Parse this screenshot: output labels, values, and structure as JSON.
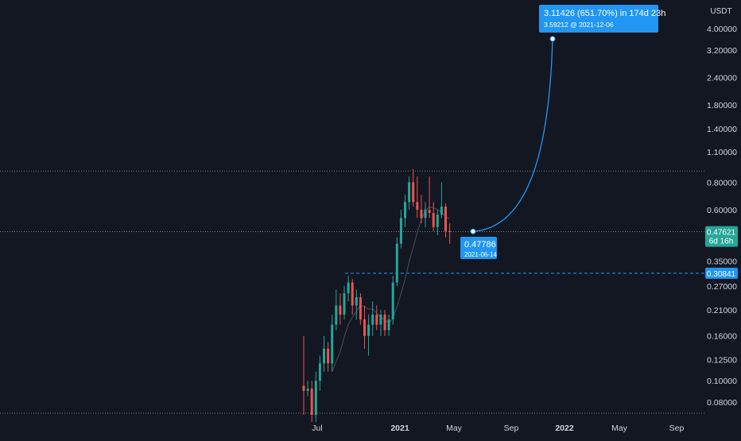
{
  "chart_data": {
    "type": "candlestick",
    "title": "",
    "unit_label": "USDT",
    "scale": "log",
    "y_axis_ticks": [
      "4.00000",
      "3.20000",
      "2.40000",
      "1.80000",
      "1.40000",
      "1.10000",
      "0.80000",
      "0.60000",
      "0.35000",
      "0.27000",
      "0.21000",
      "0.16000",
      "0.12500",
      "0.10000",
      "0.08000"
    ],
    "x_axis_ticks": [
      {
        "label": "Jul",
        "bold": false
      },
      {
        "label": "2021",
        "bold": true
      },
      {
        "label": "May",
        "bold": false
      },
      {
        "label": "Sep",
        "bold": false
      },
      {
        "label": "2022",
        "bold": true
      },
      {
        "label": "May",
        "bold": false
      },
      {
        "label": "Sep",
        "bold": false
      }
    ],
    "last_price": {
      "value": "0.47621",
      "countdown": "6d 16h",
      "color": "#26a69a"
    },
    "support_level": {
      "value": "0.30841",
      "color": "#2196f3"
    },
    "horizontal_levels": [
      0.9,
      0.477
    ],
    "candles": [
      [
        0.095,
        0.16,
        0.07,
        0.09
      ],
      [
        0.09,
        0.1,
        0.085,
        0.092
      ],
      [
        0.092,
        0.1,
        0.065,
        0.07
      ],
      [
        0.07,
        0.11,
        0.065,
        0.1
      ],
      [
        0.1,
        0.13,
        0.09,
        0.12
      ],
      [
        0.12,
        0.16,
        0.11,
        0.14
      ],
      [
        0.14,
        0.15,
        0.11,
        0.12
      ],
      [
        0.12,
        0.2,
        0.11,
        0.18
      ],
      [
        0.18,
        0.26,
        0.17,
        0.22
      ],
      [
        0.22,
        0.25,
        0.18,
        0.2
      ],
      [
        0.2,
        0.27,
        0.19,
        0.25
      ],
      [
        0.25,
        0.3,
        0.23,
        0.28
      ],
      [
        0.28,
        0.29,
        0.2,
        0.22
      ],
      [
        0.22,
        0.26,
        0.19,
        0.24
      ],
      [
        0.24,
        0.25,
        0.18,
        0.19
      ],
      [
        0.19,
        0.22,
        0.14,
        0.16
      ],
      [
        0.16,
        0.2,
        0.13,
        0.18
      ],
      [
        0.18,
        0.23,
        0.16,
        0.2
      ],
      [
        0.2,
        0.22,
        0.17,
        0.18
      ],
      [
        0.18,
        0.21,
        0.16,
        0.2
      ],
      [
        0.2,
        0.21,
        0.16,
        0.17
      ],
      [
        0.17,
        0.2,
        0.16,
        0.19
      ],
      [
        0.19,
        0.3,
        0.18,
        0.28
      ],
      [
        0.28,
        0.45,
        0.27,
        0.42
      ],
      [
        0.42,
        0.6,
        0.4,
        0.55
      ],
      [
        0.55,
        0.7,
        0.5,
        0.65
      ],
      [
        0.65,
        0.85,
        0.6,
        0.8
      ],
      [
        0.8,
        0.92,
        0.62,
        0.65
      ],
      [
        0.65,
        0.85,
        0.55,
        0.6
      ],
      [
        0.6,
        0.7,
        0.52,
        0.55
      ],
      [
        0.55,
        0.65,
        0.5,
        0.6
      ],
      [
        0.6,
        0.85,
        0.55,
        0.58
      ],
      [
        0.58,
        0.65,
        0.48,
        0.5
      ],
      [
        0.5,
        0.6,
        0.46,
        0.57
      ],
      [
        0.57,
        0.8,
        0.55,
        0.62
      ],
      [
        0.62,
        0.64,
        0.45,
        0.48
      ],
      [
        0.48,
        0.52,
        0.42,
        0.477
      ]
    ],
    "projection": {
      "start": {
        "price": "0.47786",
        "date": "2021-06-14"
      },
      "end": {
        "price": "3.59212",
        "date": "2021-12-06"
      },
      "change_text": "3.11426 (651.70%) in 174d 23h",
      "target_text": "3.59212 @ 2021-12-06",
      "color": "#2196f3"
    },
    "colors": {
      "background": "#131722",
      "up": "#26a69a",
      "down": "#ef5350",
      "grid_line": "#787b86",
      "ma_line": "#434651"
    }
  }
}
